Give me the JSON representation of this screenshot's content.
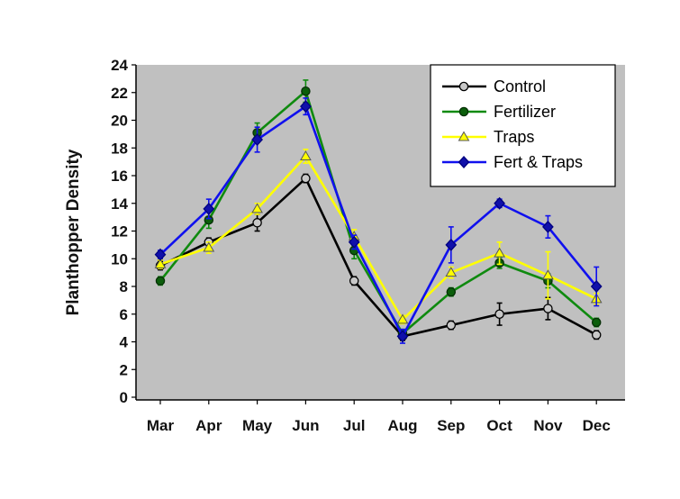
{
  "chart_data": {
    "type": "line",
    "title": "",
    "xlabel": "",
    "ylabel": "Planthopper Density",
    "ylim": [
      0,
      24
    ],
    "yticks": [
      0,
      2,
      4,
      6,
      8,
      10,
      12,
      14,
      16,
      18,
      20,
      22,
      24
    ],
    "categories": [
      "Mar",
      "Apr",
      "May",
      "Jun",
      "Jul",
      "Aug",
      "Sep",
      "Oct",
      "Nov",
      "Dec"
    ],
    "grid": false,
    "legend_position": "top-right",
    "plot_background": "#c0c0c0",
    "series": [
      {
        "name": "Control",
        "color": "#000000",
        "marker": "circle",
        "marker_fill": "#c8c8c8",
        "values": [
          9.5,
          11.2,
          12.6,
          15.8,
          8.4,
          4.4,
          5.2,
          6.0,
          6.4,
          4.5
        ],
        "errors": [
          0.3,
          0.3,
          0.6,
          0.3,
          0.3,
          0.3,
          0.3,
          0.8,
          0.8,
          0.3
        ]
      },
      {
        "name": "Fertilizer",
        "color": "#0f8a0f",
        "marker": "circle",
        "marker_fill": "#0b5e0b",
        "values": [
          8.4,
          12.8,
          19.1,
          22.1,
          10.6,
          4.6,
          7.6,
          9.7,
          8.4,
          5.4
        ],
        "errors": [
          0.3,
          0.6,
          0.7,
          0.8,
          0.6,
          0.3,
          0.3,
          0.4,
          0.5,
          0.3
        ]
      },
      {
        "name": "Traps",
        "color": "#ffff00",
        "marker": "triangle",
        "marker_fill": "#ffff00",
        "values": [
          9.6,
          10.8,
          13.6,
          17.4,
          11.6,
          5.6,
          9.0,
          10.4,
          8.8,
          7.1
        ],
        "errors": [
          0.3,
          0.4,
          0.4,
          0.5,
          0.5,
          0.3,
          0.4,
          0.8,
          1.7,
          0.4
        ]
      },
      {
        "name": "Fert & Traps",
        "color": "#1010ee",
        "marker": "diamond",
        "marker_fill": "#1010aa",
        "values": [
          10.3,
          13.6,
          18.6,
          21.0,
          11.2,
          4.4,
          11.0,
          14.0,
          12.3,
          8.0
        ],
        "errors": [
          0.3,
          0.7,
          0.9,
          0.6,
          0.5,
          0.5,
          1.3,
          0.3,
          0.8,
          1.4
        ]
      }
    ]
  }
}
